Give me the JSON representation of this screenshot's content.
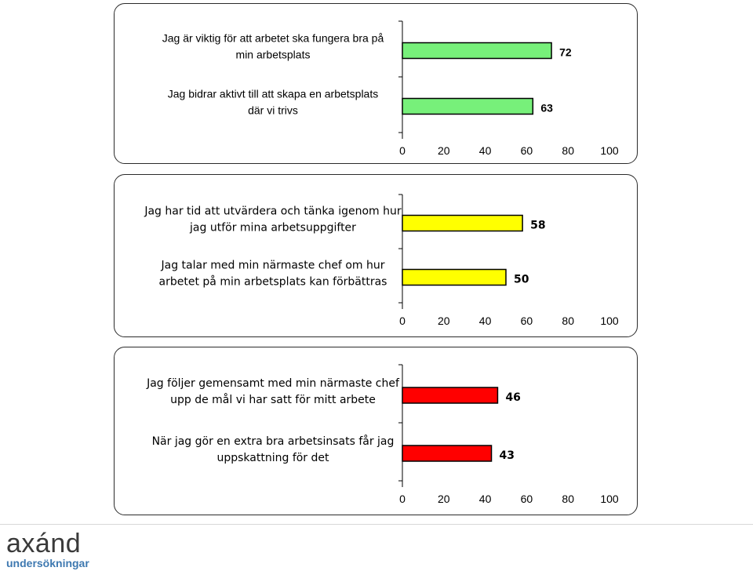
{
  "chart_data": [
    {
      "type": "bar",
      "orientation": "horizontal",
      "categories": [
        [
          "Jag är viktig för att arbetet ska fungera bra på",
          "min arbetsplats"
        ],
        [
          "Jag bidrar aktivt till att skapa en arbetsplats",
          "där vi trivs"
        ]
      ],
      "values": [
        72,
        63
      ],
      "xlim": [
        0,
        100
      ],
      "xticks": [
        0,
        20,
        40,
        60,
        80,
        100
      ],
      "bar_color": "#77f07a",
      "grid": false
    },
    {
      "type": "bar",
      "orientation": "horizontal",
      "categories": [
        [
          "Jag har tid att utvärdera och tänka igenom hur",
          "jag utför mina arbetsuppgifter"
        ],
        [
          "Jag talar med min närmaste chef om hur",
          "arbetet på min arbetsplats kan förbättras"
        ]
      ],
      "values": [
        58,
        50
      ],
      "xlim": [
        0,
        100
      ],
      "xticks": [
        0,
        20,
        40,
        60,
        80,
        100
      ],
      "bar_color": "#ffff00",
      "grid": false
    },
    {
      "type": "bar",
      "orientation": "horizontal",
      "categories": [
        [
          "Jag följer gemensamt med min närmaste chef",
          "upp de mål vi har satt för mitt arbete"
        ],
        [
          "När jag gör en extra bra arbetsinsats får jag",
          "uppskattning för det"
        ]
      ],
      "values": [
        46,
        43
      ],
      "xlim": [
        0,
        100
      ],
      "xticks": [
        0,
        20,
        40,
        60,
        80,
        100
      ],
      "bar_color": "#ff0000",
      "grid": false
    }
  ],
  "logo": {
    "main": "axánd",
    "sub": "undersökningar"
  }
}
